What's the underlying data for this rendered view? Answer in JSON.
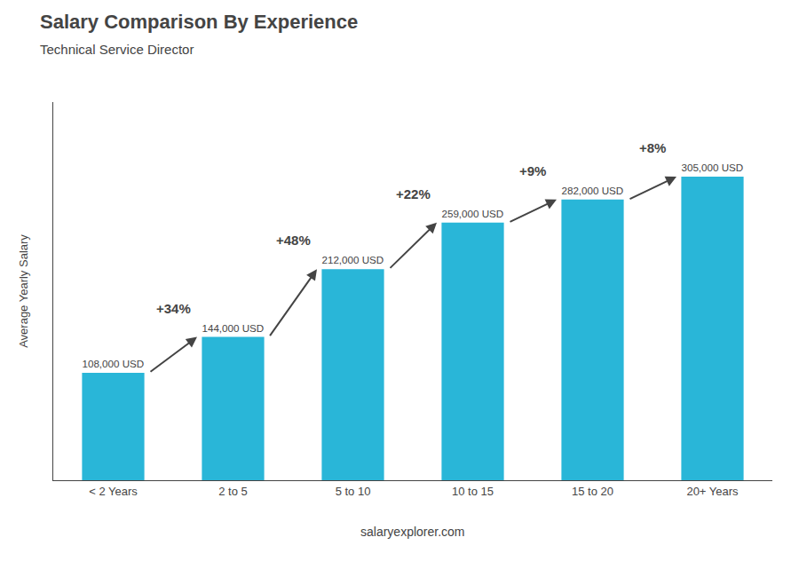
{
  "chart_data": {
    "type": "bar",
    "title": "Salary Comparison By Experience",
    "subtitle": "Technical Service Director",
    "categories": [
      "< 2 Years",
      "2 to 5",
      "5 to 10",
      "10 to 15",
      "15 to 20",
      "20+ Years"
    ],
    "values": [
      108000,
      144000,
      212000,
      259000,
      282000,
      305000
    ],
    "value_labels": [
      "108,000 USD",
      "144,000 USD",
      "212,000 USD",
      "259,000 USD",
      "282,000 USD",
      "305,000 USD"
    ],
    "data_labels": true,
    "color": "#29b6d8",
    "ylabel": "Average Yearly Salary",
    "ylim": [
      0,
      380000
    ],
    "tick_labels": "x",
    "grid": false,
    "annotations": [
      {
        "text": "+34%",
        "between": [
          "< 2 Years",
          "2 to 5"
        ]
      },
      {
        "text": "+48%",
        "between": [
          "2 to 5",
          "5 to 10"
        ]
      },
      {
        "text": "+22%",
        "between": [
          "5 to 10",
          "10 to 15"
        ]
      },
      {
        "text": "+9%",
        "between": [
          "10 to 15",
          "15 to 20"
        ]
      },
      {
        "text": "+8%",
        "between": [
          "15 to 20",
          "20+ Years"
        ]
      },
      {
        "text": "salaryexplorer.com"
      }
    ]
  }
}
